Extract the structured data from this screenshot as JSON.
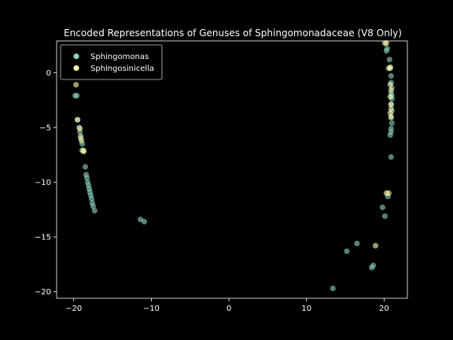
{
  "chart_data": {
    "type": "scatter",
    "title": "Encoded Representations of Genuses of Sphingomonadaceae (V8 Only)",
    "xlabel": "",
    "ylabel": "",
    "xlim": [
      -22.2,
      23.0
    ],
    "ylim": [
      -20.6,
      2.9
    ],
    "xticks": [
      -20,
      -10,
      0,
      10,
      20
    ],
    "yticks": [
      0,
      -5,
      -10,
      -15,
      -20
    ],
    "grid": false,
    "legend": "upper-left",
    "series": [
      {
        "name": "Sphingomonas",
        "color": "#8dd3c7",
        "points": [
          [
            -19.8,
            -2.1
          ],
          [
            -19.6,
            -2.1
          ],
          [
            -19.5,
            -4.3
          ],
          [
            -19.3,
            -5.0
          ],
          [
            -19.2,
            -5.4
          ],
          [
            -19.1,
            -6.0
          ],
          [
            -18.9,
            -6.5
          ],
          [
            -18.7,
            -7.1
          ],
          [
            -18.5,
            -8.6
          ],
          [
            -18.4,
            -9.3
          ],
          [
            -18.3,
            -9.6
          ],
          [
            -18.2,
            -10.0
          ],
          [
            -18.1,
            -10.3
          ],
          [
            -18.0,
            -10.6
          ],
          [
            -17.9,
            -10.9
          ],
          [
            -17.8,
            -11.2
          ],
          [
            -17.7,
            -11.5
          ],
          [
            -17.6,
            -11.9
          ],
          [
            -17.5,
            -12.2
          ],
          [
            -17.3,
            -12.6
          ],
          [
            -11.4,
            -13.4
          ],
          [
            -10.9,
            -13.6
          ],
          [
            13.4,
            -19.7
          ],
          [
            15.2,
            -16.3
          ],
          [
            16.5,
            -15.6
          ],
          [
            18.4,
            -17.8
          ],
          [
            18.6,
            -17.6
          ],
          [
            19.8,
            -12.3
          ],
          [
            20.1,
            -13.1
          ],
          [
            20.5,
            -11.3
          ],
          [
            20.9,
            -7.7
          ],
          [
            20.3,
            2.0
          ],
          [
            20.4,
            2.2
          ],
          [
            20.7,
            1.2
          ],
          [
            20.8,
            0.4
          ],
          [
            20.9,
            -0.3
          ],
          [
            20.9,
            -0.9
          ],
          [
            21.0,
            -1.4
          ],
          [
            20.9,
            -1.9
          ],
          [
            21.0,
            -2.4
          ],
          [
            20.9,
            -2.9
          ],
          [
            21.0,
            -3.5
          ],
          [
            20.9,
            -4.0
          ],
          [
            21.0,
            -4.6
          ],
          [
            20.9,
            -5.1
          ],
          [
            20.8,
            -5.7
          ],
          [
            20.9,
            -5.4
          ],
          [
            21.0,
            -2.1
          ]
        ]
      },
      {
        "name": "Sphingosinicella",
        "color": "#ffffb3",
        "points": [
          [
            -19.7,
            -1.1
          ],
          [
            -19.5,
            -4.3
          ],
          [
            -19.2,
            -5.1
          ],
          [
            -19.1,
            -5.8
          ],
          [
            -19.0,
            -6.2
          ],
          [
            -18.9,
            -7.1
          ],
          [
            -18.7,
            -7.2
          ],
          [
            20.1,
            2.7
          ],
          [
            20.3,
            2.7
          ],
          [
            20.6,
            0.4
          ],
          [
            20.8,
            0.5
          ],
          [
            20.8,
            -1.1
          ],
          [
            20.9,
            -1.6
          ],
          [
            20.8,
            -2.2
          ],
          [
            20.9,
            -2.9
          ],
          [
            20.9,
            -3.3
          ],
          [
            20.8,
            -3.7
          ],
          [
            20.9,
            -4.1
          ],
          [
            20.6,
            -11.0
          ],
          [
            20.3,
            -11.0
          ],
          [
            18.9,
            -15.8
          ]
        ]
      }
    ]
  }
}
